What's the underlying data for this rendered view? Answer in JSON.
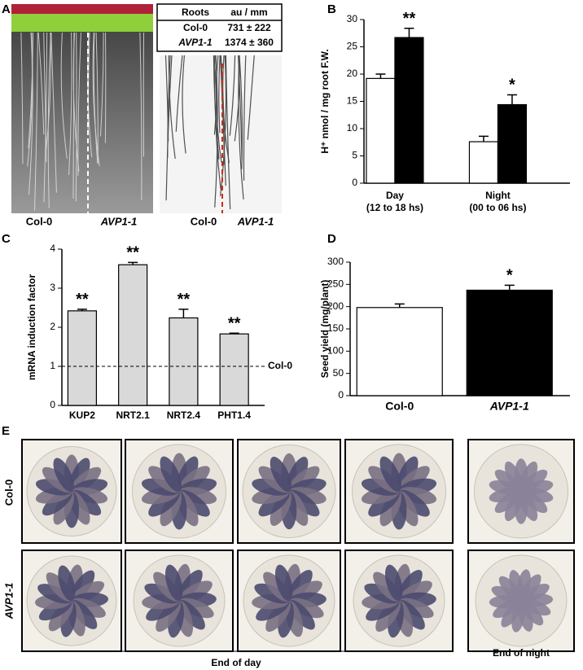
{
  "panel_labels": [
    "A",
    "B",
    "C",
    "D",
    "E"
  ],
  "panel_a": {
    "table": {
      "header": [
        "Roots",
        "au / mm"
      ],
      "rows": [
        [
          "Col-0",
          "731 ± 222"
        ],
        [
          "AVP1-1",
          "1374 ± 360"
        ]
      ]
    },
    "image_labels": [
      "Col-0",
      "AVP1-1",
      "Col-0",
      "AVP1-1"
    ]
  },
  "chart_data": [
    {
      "type": "bar",
      "ylabel": "H⁺ nmol / mg root F.W.",
      "categories": [
        "Day",
        "Night"
      ],
      "category_notes": [
        "(12 to 18 hs)",
        "(00 to 06 hs)"
      ],
      "series": [
        {
          "color": "#ffffff",
          "values": [
            19.2,
            7.6
          ],
          "errors": [
            0.8,
            1.0
          ],
          "significance": [
            null,
            null
          ]
        },
        {
          "color": "#000000",
          "values": [
            26.7,
            14.4
          ],
          "errors": [
            1.7,
            1.8
          ],
          "significance": [
            "**",
            "*"
          ]
        }
      ],
      "ylim": [
        0,
        30
      ],
      "yticks": [
        0,
        5,
        10,
        15,
        20,
        25,
        30
      ]
    },
    {
      "type": "bar",
      "ylabel": "mRNA induction factor",
      "categories": [
        "KUP2",
        "NRT2.1",
        "NRT2.4",
        "PHT1.4"
      ],
      "series": [
        {
          "color": "#d9d9d9",
          "values": [
            2.42,
            3.6,
            2.24,
            1.83
          ],
          "errors": [
            0.04,
            0.06,
            0.22,
            0.02
          ],
          "significance": [
            "**",
            "**",
            "**",
            "**"
          ]
        }
      ],
      "reference_line": {
        "value": 1,
        "label": "Col-0"
      },
      "ylim": [
        0,
        4
      ],
      "yticks": [
        0,
        1,
        2,
        3,
        4
      ]
    },
    {
      "type": "bar",
      "ylabel": "Seed yield (mg/plant)",
      "categories": [
        "Col-0",
        "AVP1-1"
      ],
      "series": [
        {
          "colors": [
            "#ffffff",
            "#000000"
          ],
          "values": [
            198,
            237
          ],
          "errors": [
            8,
            11
          ],
          "significance": [
            null,
            "*"
          ]
        }
      ],
      "ylim": [
        0,
        300
      ],
      "yticks": [
        0,
        50,
        100,
        150,
        200,
        250,
        300
      ]
    }
  ],
  "panel_e": {
    "row_labels": [
      "Col-0",
      "AVP1-1"
    ],
    "group_labels": [
      "End of day",
      "End of night"
    ]
  }
}
